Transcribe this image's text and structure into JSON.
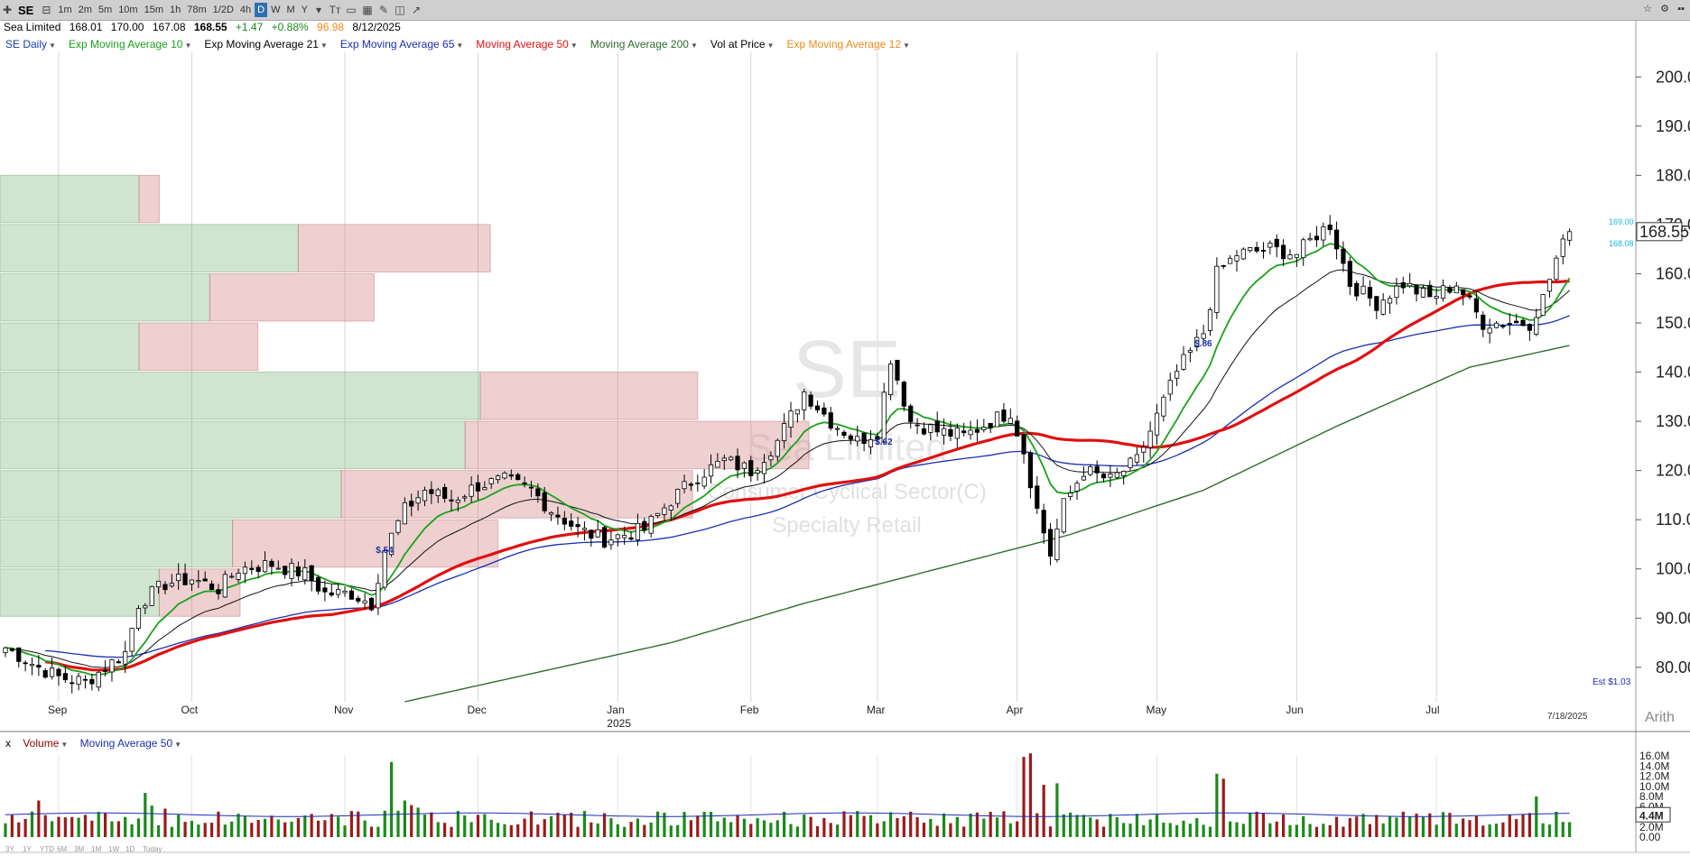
{
  "toolbar": {
    "symbol": "SE",
    "timeframes": [
      "1m",
      "2m",
      "5m",
      "10m",
      "15m",
      "1h",
      "78m",
      "1/2D",
      "4h",
      "D",
      "W",
      "M",
      "Y"
    ],
    "active_timeframe": "D"
  },
  "quote": {
    "name": "Sea Limited",
    "open": "168.01",
    "high": "170.00",
    "low": "167.08",
    "last": "168.55",
    "change": "+1.47",
    "change_pct": "+0.88%",
    "rating": "96.98",
    "date": "8/12/2025"
  },
  "indicators": [
    {
      "label": "SE Daily",
      "color": "#1a3fb0"
    },
    {
      "label": "Exp Moving Average 10",
      "color": "#1aa31a"
    },
    {
      "label": "Exp Moving Average 21",
      "color": "#000000"
    },
    {
      "label": "Exp Moving Average 65",
      "color": "#1a2fb0"
    },
    {
      "label": "Moving Average 50",
      "color": "#e01010"
    },
    {
      "label": "Moving Average 200",
      "color": "#2e6b2e"
    },
    {
      "label": "Vol at Price",
      "color": "#000000"
    },
    {
      "label": "Exp Moving Average 12",
      "color": "#ee8a1a"
    }
  ],
  "volume_panel": {
    "close_label": "x",
    "label": "Volume",
    "ma_label": "Moving Average 50",
    "last_volume": "4.4M"
  },
  "watermark": {
    "symbol": "SE",
    "company": "Sea Limited",
    "sector": "Consumer Cyclical Sector(C)",
    "industry": "Specialty Retail"
  },
  "annotations": {
    "earnings": [
      {
        "date": "Nov 12",
        "label": "$.54"
      },
      {
        "date": "Mar 4",
        "label": "$.62"
      },
      {
        "date": "May 13",
        "label": "$.86"
      }
    ],
    "estimate": "Est $1.03",
    "latest_date": "7/18/2025",
    "price_line_upper": "169.00",
    "price_line_lower": "168.08",
    "scale_mode": "Arith"
  },
  "bottom_ranges": [
    "3Y",
    "1Y",
    "YTD",
    "6M",
    "3M",
    "1M",
    "1W",
    "1D",
    "Today"
  ],
  "chart_data": {
    "type": "candlestick",
    "ylim": [
      73,
      205
    ],
    "yticks": [
      80,
      90,
      100,
      110,
      120,
      130,
      140,
      150,
      160,
      170,
      180,
      190,
      200
    ],
    "ytick_labels": [
      "80.00",
      "90.00",
      "100.00",
      "110.00",
      "120.00",
      "130.00",
      "140.00",
      "150.00",
      "160.00",
      "170.00",
      "180.00",
      "190.00",
      "200.00"
    ],
    "last_price": 168.55,
    "xticks": [
      {
        "label": "Sep",
        "idx": 8
      },
      {
        "label": "Oct",
        "idx": 28
      },
      {
        "label": "Nov",
        "idx": 51
      },
      {
        "label": "Dec",
        "idx": 71
      },
      {
        "label": "Jan",
        "idx": 92,
        "sub": "2025"
      },
      {
        "label": "Feb",
        "idx": 112
      },
      {
        "label": "Mar",
        "idx": 131
      },
      {
        "label": "Apr",
        "idx": 152
      },
      {
        "label": "May",
        "idx": 173
      },
      {
        "label": "Jun",
        "idx": 194
      },
      {
        "label": "Jul",
        "idx": 215
      }
    ],
    "close_keypoints": [
      [
        0,
        84
      ],
      [
        5,
        80
      ],
      [
        8,
        78
      ],
      [
        12,
        77
      ],
      [
        15,
        80
      ],
      [
        18,
        83
      ],
      [
        20,
        93
      ],
      [
        24,
        97
      ],
      [
        28,
        98
      ],
      [
        32,
        96
      ],
      [
        35,
        100
      ],
      [
        40,
        101
      ],
      [
        45,
        99
      ],
      [
        48,
        95
      ],
      [
        52,
        95
      ],
      [
        55,
        93
      ],
      [
        57,
        104
      ],
      [
        60,
        112
      ],
      [
        63,
        116
      ],
      [
        67,
        114
      ],
      [
        71,
        117
      ],
      [
        75,
        118
      ],
      [
        79,
        116
      ],
      [
        82,
        112
      ],
      [
        86,
        108
      ],
      [
        90,
        106
      ],
      [
        93,
        107
      ],
      [
        96,
        108
      ],
      [
        100,
        114
      ],
      [
        104,
        119
      ],
      [
        108,
        122
      ],
      [
        112,
        120
      ],
      [
        116,
        126
      ],
      [
        120,
        136
      ],
      [
        124,
        130
      ],
      [
        128,
        126
      ],
      [
        131,
        128
      ],
      [
        133,
        143
      ],
      [
        136,
        130
      ],
      [
        140,
        128
      ],
      [
        144,
        127
      ],
      [
        148,
        130
      ],
      [
        151,
        132
      ],
      [
        153,
        124
      ],
      [
        155,
        112
      ],
      [
        157,
        103
      ],
      [
        159,
        113
      ],
      [
        162,
        120
      ],
      [
        166,
        118
      ],
      [
        170,
        122
      ],
      [
        173,
        131
      ],
      [
        176,
        140
      ],
      [
        178,
        144
      ],
      [
        180,
        148
      ],
      [
        182,
        160
      ],
      [
        185,
        164
      ],
      [
        190,
        165
      ],
      [
        194,
        164
      ],
      [
        197,
        168
      ],
      [
        199,
        170
      ],
      [
        202,
        158
      ],
      [
        206,
        154
      ],
      [
        210,
        158
      ],
      [
        214,
        155
      ],
      [
        218,
        158
      ],
      [
        222,
        150
      ],
      [
        226,
        150
      ],
      [
        229,
        150
      ],
      [
        231,
        155
      ],
      [
        233,
        163
      ],
      [
        235,
        168.55
      ]
    ],
    "ma200_keypoints": [
      [
        60,
        73
      ],
      [
        80,
        79
      ],
      [
        100,
        85
      ],
      [
        120,
        93
      ],
      [
        140,
        100
      ],
      [
        160,
        107
      ],
      [
        180,
        116
      ],
      [
        200,
        129
      ],
      [
        220,
        141
      ],
      [
        237,
        146
      ]
    ],
    "volume": {
      "ylim": [
        0,
        16
      ],
      "yticks": [
        0,
        2,
        4,
        6,
        8,
        10,
        12,
        14,
        16
      ],
      "ytick_labels": [
        "0.00",
        "2.0M",
        "4.0M",
        "6.0M",
        "8.0M",
        "10.0M",
        "12.0M",
        "14.0M",
        "16.0M"
      ],
      "avg": 4.4,
      "spikes": [
        [
          5,
          7.2
        ],
        [
          21,
          8.7
        ],
        [
          22,
          6.2
        ],
        [
          24,
          5.6
        ],
        [
          58,
          14.8
        ],
        [
          59,
          5.2
        ],
        [
          60,
          7.2
        ],
        [
          61,
          6.3
        ],
        [
          62,
          5.8
        ],
        [
          153,
          15.8
        ],
        [
          154,
          16.5
        ],
        [
          156,
          10.3
        ],
        [
          158,
          10.6
        ],
        [
          182,
          12.5
        ],
        [
          183,
          11.5
        ],
        [
          230,
          8.0
        ]
      ]
    },
    "vol_at_price": [
      {
        "low": 170,
        "high": 180,
        "up": 0.55,
        "down": 0.08
      },
      {
        "low": 160,
        "high": 170,
        "up": 1.18,
        "down": 0.76
      },
      {
        "low": 150,
        "high": 160,
        "up": 0.83,
        "down": 0.65
      },
      {
        "low": 140,
        "high": 150,
        "up": 0.55,
        "down": 0.47
      },
      {
        "low": 130,
        "high": 140,
        "up": 1.9,
        "down": 0.86
      },
      {
        "low": 120,
        "high": 130,
        "up": 1.84,
        "down": 1.36
      },
      {
        "low": 110,
        "high": 120,
        "up": 1.35,
        "down": 1.39
      },
      {
        "low": 100,
        "high": 110,
        "up": 0.92,
        "down": 1.05
      },
      {
        "low": 90,
        "high": 100,
        "up": 0.63,
        "down": 0.32
      }
    ]
  }
}
